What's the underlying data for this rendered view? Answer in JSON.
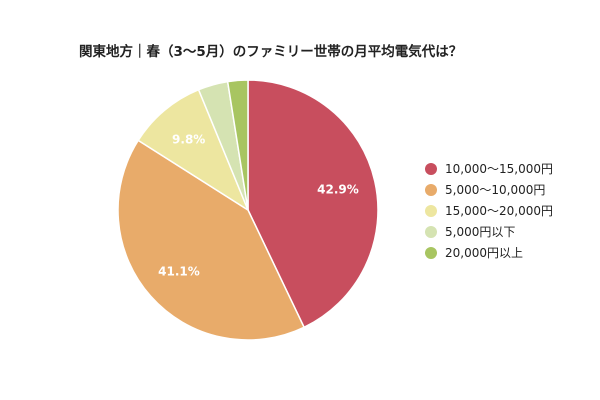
{
  "chart_data": {
    "type": "pie",
    "title": "関東地方｜春（3〜5月）のファミリー世帯の月平均電気代は？",
    "slices": [
      {
        "label": "10,000〜15,000円",
        "value": 42.9,
        "value_label": "42.9%",
        "color": "#c84e5e"
      },
      {
        "label": "5,000〜10,000円",
        "value": 41.1,
        "value_label": "41.1%",
        "color": "#e8ab6a"
      },
      {
        "label": "15,000〜20,000円",
        "value": 9.8,
        "value_label": "9.8%",
        "color": "#ede6a0"
      },
      {
        "label": "5,000円以下",
        "value": 3.7,
        "value_label": "",
        "color": "#d5e3b2"
      },
      {
        "label": "20,000円以上",
        "value": 2.5,
        "value_label": "",
        "color": "#a8c561"
      }
    ],
    "legend_position": "right"
  }
}
